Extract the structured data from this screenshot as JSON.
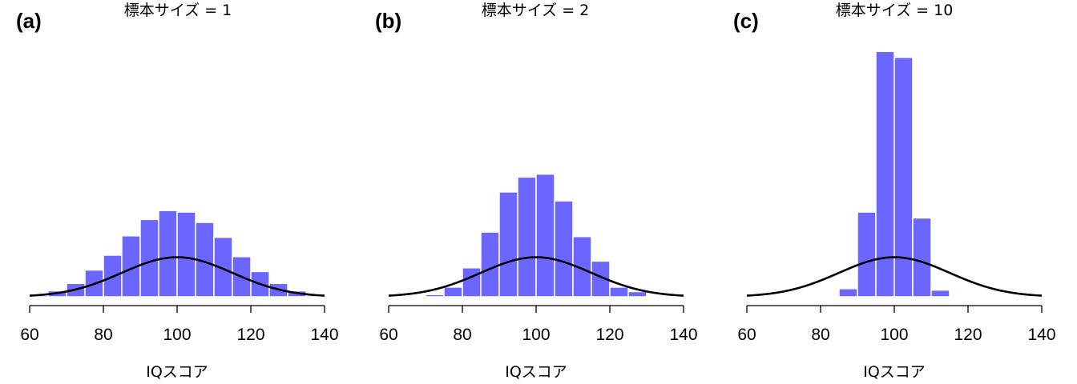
{
  "colors": {
    "bar": "#6b66ff",
    "bar_edge": "#ffffff",
    "curve": "#000000"
  },
  "chart_data": [
    {
      "type": "bar",
      "panel_label": "(a)",
      "title": "標本サイズ = 1",
      "xlabel": "IQスコア",
      "ylabel": "",
      "xlim": [
        60,
        140
      ],
      "xticks": [
        60,
        80,
        100,
        120,
        140
      ],
      "bin_edges": [
        60,
        65,
        70,
        75,
        80,
        85,
        90,
        95,
        100,
        105,
        110,
        115,
        120,
        125,
        130,
        135,
        140
      ],
      "values": [
        0.001,
        0.004,
        0.009,
        0.018,
        0.028,
        0.041,
        0.052,
        0.058,
        0.057,
        0.05,
        0.04,
        0.027,
        0.017,
        0.009,
        0.004,
        0.001
      ],
      "normal_curve": {
        "mean": 100,
        "sd": 15
      },
      "grid": false,
      "legend": "none"
    },
    {
      "type": "bar",
      "panel_label": "(b)",
      "title": "標本サイズ = 2",
      "xlabel": "IQスコア",
      "ylabel": "",
      "xlim": [
        60,
        140
      ],
      "xticks": [
        60,
        80,
        100,
        120,
        140
      ],
      "bin_edges": [
        65,
        70,
        75,
        80,
        85,
        90,
        95,
        100,
        105,
        110,
        115,
        120,
        125,
        130
      ],
      "values": [
        0.0003,
        0.0015,
        0.0065,
        0.0195,
        0.0435,
        0.0705,
        0.0805,
        0.0825,
        0.0645,
        0.0405,
        0.024,
        0.0065,
        0.0035
      ],
      "normal_curve": {
        "mean": 100,
        "sd": 15
      },
      "grid": false,
      "legend": "none"
    },
    {
      "type": "bar",
      "panel_label": "(c)",
      "title": "標本サイズ = 10",
      "xlabel": "IQスコア",
      "ylabel": "",
      "xlim": [
        60,
        140
      ],
      "xticks": [
        60,
        80,
        100,
        120,
        140
      ],
      "bin_edges": [
        85,
        90,
        95,
        100,
        105,
        110,
        115
      ],
      "values": [
        0.0055,
        0.057,
        0.165,
        0.161,
        0.053,
        0.0045
      ],
      "normal_curve": {
        "mean": 100,
        "sd": 15
      },
      "grid": false,
      "legend": "none"
    }
  ]
}
